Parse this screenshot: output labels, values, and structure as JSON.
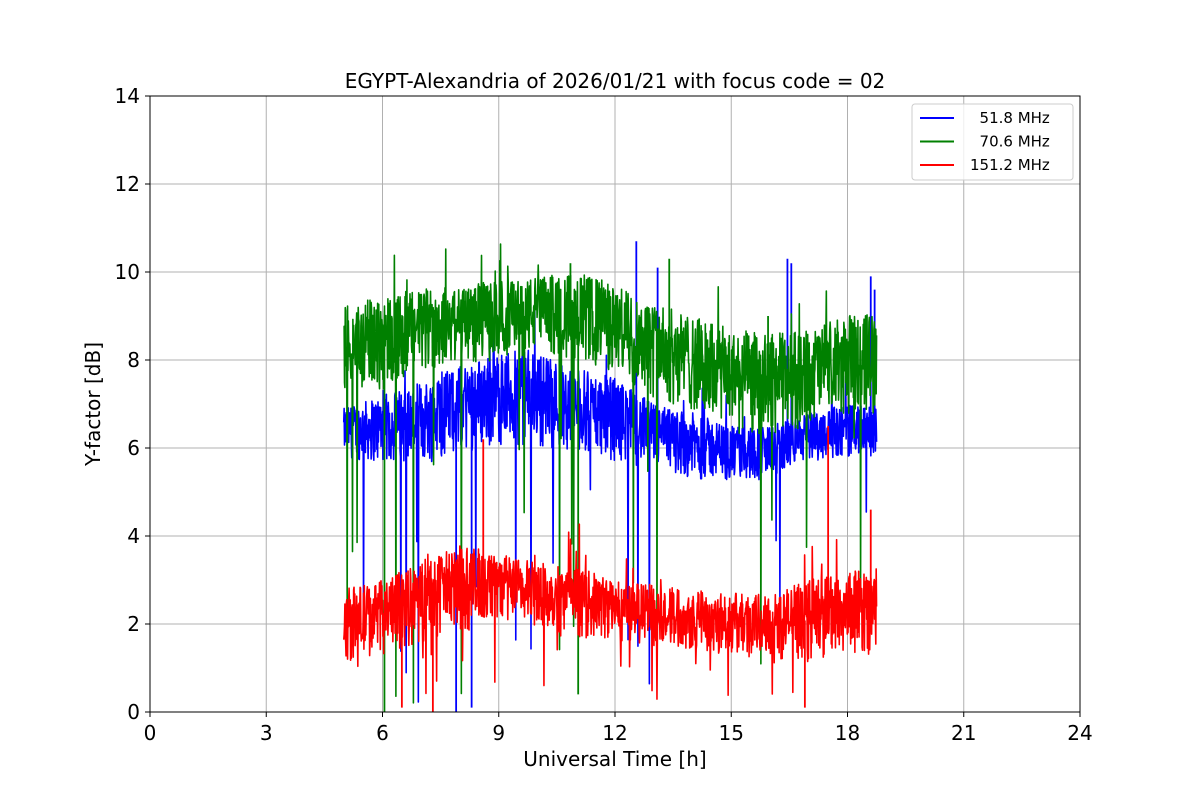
{
  "chart_data": {
    "type": "line",
    "title": "EGYPT-Alexandria of 2026/01/21 with focus code = 02",
    "xlabel": "Universal Time [h]",
    "ylabel": "Y-factor [dB]",
    "xlim": [
      0,
      24
    ],
    "ylim": [
      0,
      14
    ],
    "xticks": [
      0,
      3,
      6,
      9,
      12,
      15,
      18,
      21,
      24
    ],
    "yticks": [
      0,
      2,
      4,
      6,
      8,
      10,
      12,
      14
    ],
    "grid": true,
    "legend_position": "top-right",
    "time_span_hours": [
      5.0,
      18.75
    ],
    "series": [
      {
        "name": "51.8 MHz",
        "legend_label": "  51.8 MHz",
        "color": "#0000ff",
        "band_low": [
          [
            5.0,
            5.8
          ],
          [
            6.0,
            5.6
          ],
          [
            7.0,
            5.6
          ],
          [
            8.0,
            5.9
          ],
          [
            9.0,
            6.0
          ],
          [
            10.0,
            6.0
          ],
          [
            11.0,
            5.9
          ],
          [
            12.0,
            5.7
          ],
          [
            13.0,
            5.5
          ],
          [
            14.0,
            5.3
          ],
          [
            15.0,
            5.2
          ],
          [
            16.0,
            5.3
          ],
          [
            17.0,
            5.7
          ],
          [
            18.0,
            5.8
          ],
          [
            18.75,
            5.8
          ]
        ],
        "band_high": [
          [
            5.0,
            6.9
          ],
          [
            6.0,
            7.2
          ],
          [
            7.0,
            7.5
          ],
          [
            8.0,
            7.9
          ],
          [
            9.0,
            8.2
          ],
          [
            10.0,
            8.2
          ],
          [
            11.0,
            7.8
          ],
          [
            12.0,
            7.6
          ],
          [
            13.0,
            7.0
          ],
          [
            14.0,
            6.8
          ],
          [
            15.0,
            6.5
          ],
          [
            16.0,
            6.5
          ],
          [
            17.0,
            6.8
          ],
          [
            18.0,
            7.0
          ],
          [
            18.75,
            6.9
          ]
        ],
        "spikes": [
          [
            12.55,
            10.7
          ],
          [
            13.1,
            10.1
          ],
          [
            16.45,
            10.3
          ],
          [
            16.55,
            10.2
          ],
          [
            18.6,
            9.9
          ],
          [
            18.7,
            9.6
          ],
          [
            7.9,
            0.0
          ],
          [
            8.3,
            0.1
          ]
        ]
      },
      {
        "name": "70.6 MHz",
        "legend_label": "  70.6 MHz",
        "color": "#008000",
        "band_low": [
          [
            5.0,
            7.2
          ],
          [
            6.0,
            7.3
          ],
          [
            7.0,
            7.7
          ],
          [
            8.0,
            7.9
          ],
          [
            9.0,
            8.0
          ],
          [
            10.0,
            8.1
          ],
          [
            11.0,
            8.0
          ],
          [
            12.0,
            7.6
          ],
          [
            13.0,
            7.1
          ],
          [
            14.0,
            6.8
          ],
          [
            15.0,
            6.3
          ],
          [
            16.0,
            6.2
          ],
          [
            17.0,
            6.5
          ],
          [
            18.0,
            6.7
          ],
          [
            18.75,
            6.8
          ]
        ],
        "band_high": [
          [
            5.0,
            9.2
          ],
          [
            6.0,
            9.5
          ],
          [
            7.0,
            9.6
          ],
          [
            8.0,
            9.7
          ],
          [
            9.0,
            9.8
          ],
          [
            10.0,
            9.9
          ],
          [
            11.0,
            10.0
          ],
          [
            12.0,
            9.7
          ],
          [
            13.0,
            9.3
          ],
          [
            14.0,
            9.0
          ],
          [
            15.0,
            8.7
          ],
          [
            16.0,
            8.6
          ],
          [
            17.0,
            8.7
          ],
          [
            18.0,
            9.0
          ],
          [
            18.75,
            9.1
          ]
        ],
        "spikes": [
          [
            10.85,
            10.2
          ],
          [
            13.4,
            10.3
          ],
          [
            15.95,
            9.0
          ],
          [
            6.05,
            0.0
          ],
          [
            11.05,
            0.4
          ]
        ]
      },
      {
        "name": "151.2 MHz",
        "legend_label": "151.2 MHz",
        "color": "#ff0000",
        "band_low": [
          [
            5.0,
            1.1
          ],
          [
            6.0,
            1.3
          ],
          [
            7.0,
            1.5
          ],
          [
            8.0,
            1.8
          ],
          [
            9.0,
            2.0
          ],
          [
            10.0,
            1.9
          ],
          [
            11.0,
            1.7
          ],
          [
            12.0,
            1.6
          ],
          [
            13.0,
            1.5
          ],
          [
            14.0,
            1.4
          ],
          [
            15.0,
            1.3
          ],
          [
            16.0,
            1.1
          ],
          [
            17.0,
            1.2
          ],
          [
            18.0,
            1.3
          ],
          [
            18.75,
            1.3
          ]
        ],
        "band_high": [
          [
            5.0,
            2.8
          ],
          [
            6.0,
            3.0
          ],
          [
            7.0,
            3.4
          ],
          [
            8.0,
            3.8
          ],
          [
            9.0,
            3.6
          ],
          [
            10.0,
            3.4
          ],
          [
            11.0,
            3.3
          ],
          [
            12.0,
            3.0
          ],
          [
            13.0,
            2.9
          ],
          [
            14.0,
            2.8
          ],
          [
            15.0,
            2.7
          ],
          [
            16.0,
            2.7
          ],
          [
            17.0,
            3.0
          ],
          [
            18.0,
            3.2
          ],
          [
            18.75,
            3.3
          ]
        ],
        "spikes": [
          [
            8.6,
            6.2
          ],
          [
            17.5,
            6.5
          ],
          [
            18.6,
            4.6
          ],
          [
            6.5,
            0.1
          ],
          [
            7.3,
            0.0
          ],
          [
            16.9,
            0.1
          ]
        ]
      }
    ]
  }
}
